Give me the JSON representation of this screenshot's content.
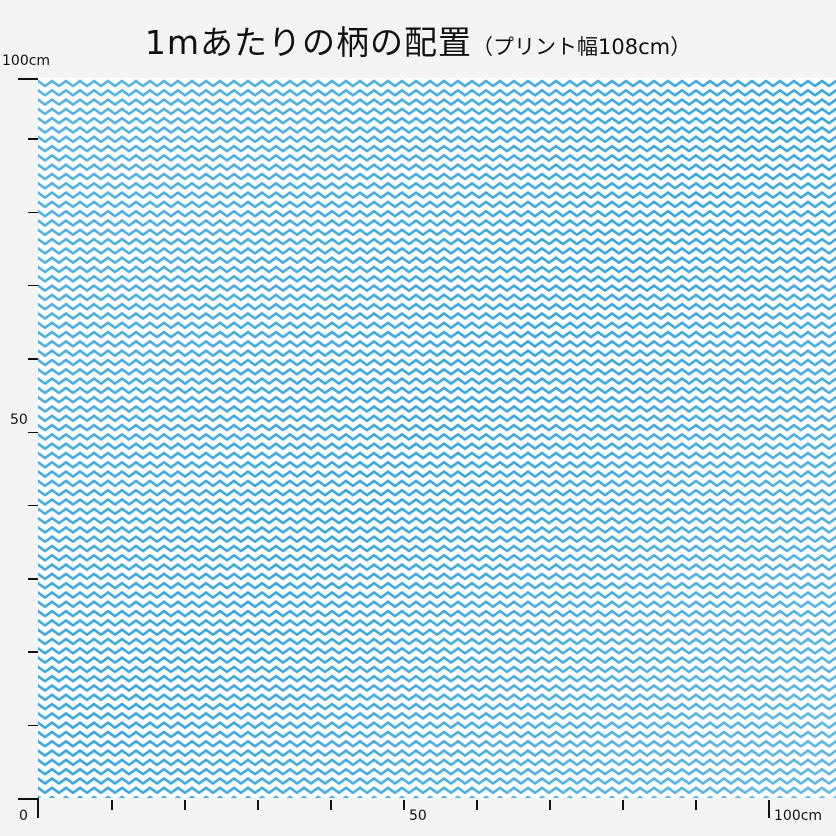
{
  "title": {
    "main": "1mあたりの柄の配置",
    "sub": "（プリント幅108cm）"
  },
  "axes": {
    "y_top_label": "100cm",
    "y_mid_label": "50",
    "origin_label": "0",
    "x_mid_label": "50",
    "x_end_label": "100cm"
  },
  "pattern": {
    "type": "chevron-zigzag",
    "colors": [
      "#2f9fdc",
      "#6cc0ea",
      "#ffffff"
    ]
  }
}
